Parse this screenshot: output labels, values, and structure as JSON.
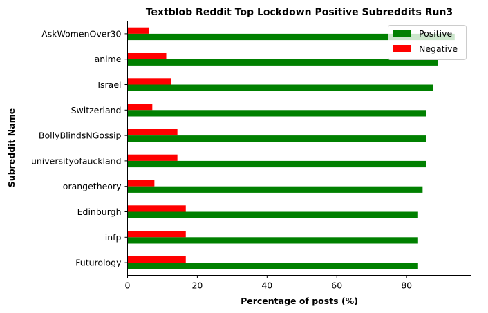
{
  "chart_data": {
    "type": "bar",
    "orientation": "horizontal",
    "title": "Textblob Reddit Top Lockdown Positive Subreddits Run3",
    "xlabel": "Percentage of posts (%)",
    "ylabel": "Subreddit Name",
    "xlim": [
      0,
      98.5
    ],
    "xticks": [
      0,
      20,
      40,
      60,
      80
    ],
    "grid": false,
    "legend_position": "top-right",
    "categories": [
      "AskWomenOver30",
      "anime",
      "Israel",
      "Switzerland",
      "BollyBlindsNGossip",
      "universityofauckland",
      "orangetheory",
      "Edinburgh",
      "infp",
      "Futurology"
    ],
    "series": [
      {
        "name": "Positive",
        "color": "#008000",
        "values": [
          93.8,
          88.9,
          87.5,
          85.7,
          85.7,
          85.7,
          84.6,
          83.3,
          83.3,
          83.3
        ]
      },
      {
        "name": "Negative",
        "color": "#ff0000",
        "values": [
          6.2,
          11.1,
          12.5,
          7.1,
          14.3,
          14.3,
          7.7,
          16.7,
          16.7,
          16.7
        ]
      }
    ]
  }
}
